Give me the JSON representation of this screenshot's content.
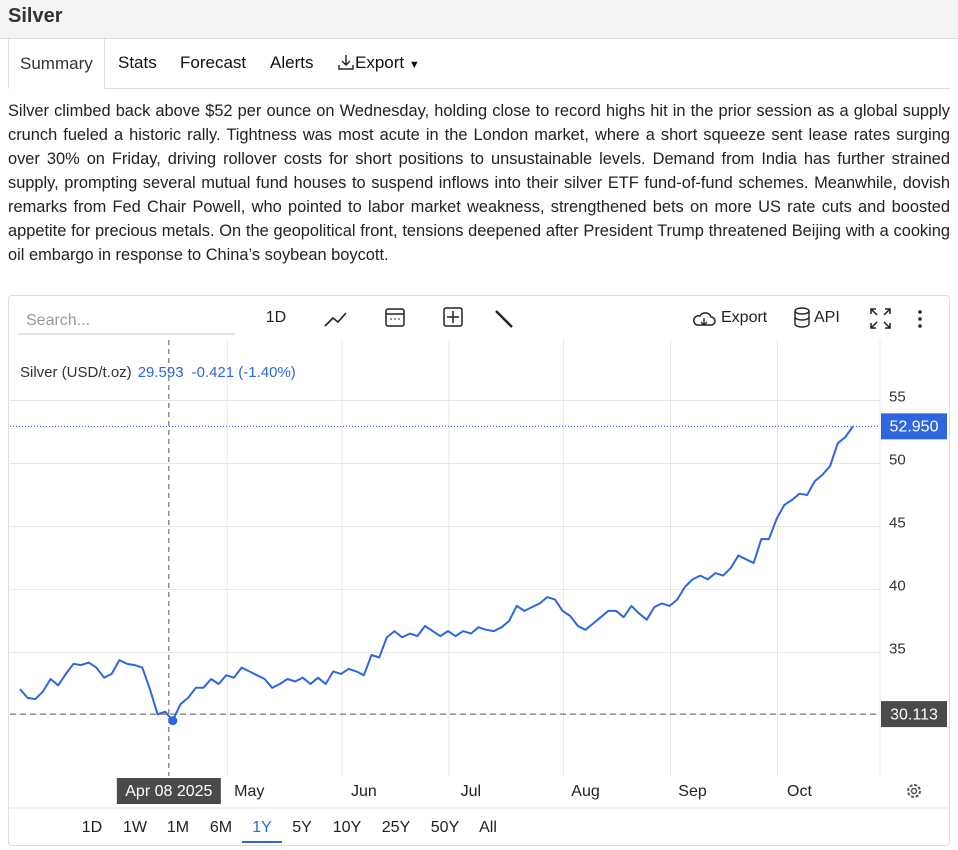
{
  "header": {
    "title": "Silver"
  },
  "tabs": [
    "Summary",
    "Stats",
    "Forecast",
    "Alerts",
    "Export"
  ],
  "article": "Silver climbed back above $52 per ounce on Wednesday, holding close to record highs hit in the prior session as a global supply crunch fueled a historic rally. Tightness was most acute in the London market, where a short squeeze sent lease rates surging over 30% on Friday, driving rollover costs for short positions to unsustainable levels. Demand from India has further strained supply, prompting several mutual fund houses to suspend inflows into their silver ETF fund-of-fund schemes. Meanwhile, dovish remarks from Fed Chair Powell, who pointed to labor market weakness, strengthened bets on more US rate cuts and boosted appetite for precious metals. On the geopolitical front, tensions deepened after President Trump threatened Beijing with a cooking oil embargo in response to China’s soybean boycott.",
  "toolbar": {
    "search_placeholder": "Search...",
    "interval": "1D",
    "export": "Export",
    "api": "API"
  },
  "ranges": [
    "1D",
    "1W",
    "1M",
    "6M",
    "1Y",
    "5Y",
    "10Y",
    "25Y",
    "50Y",
    "All"
  ],
  "active_range": "1Y",
  "chart_data": {
    "type": "line",
    "series": [
      {
        "name": "Silver (USD/t.oz)",
        "color": "#2f66e0",
        "values": [
          32.1,
          31.4,
          31.3,
          31.9,
          32.9,
          32.4,
          33.3,
          34.1,
          34.0,
          34.2,
          33.8,
          33.0,
          33.3,
          34.4,
          34.1,
          34.0,
          33.8,
          32.1,
          30.1,
          30.3,
          29.593,
          30.9,
          31.4,
          32.2,
          32.2,
          32.9,
          32.5,
          33.2,
          33.0,
          33.8,
          33.5,
          33.2,
          32.9,
          32.2,
          32.5,
          32.9,
          32.7,
          33.0,
          32.5,
          33.0,
          32.5,
          33.5,
          33.3,
          33.7,
          33.5,
          33.2,
          34.8,
          34.6,
          36.2,
          36.7,
          36.2,
          36.5,
          36.3,
          37.1,
          36.7,
          36.3,
          36.7,
          36.3,
          36.7,
          36.5,
          37.0,
          36.8,
          36.7,
          37.0,
          37.5,
          38.7,
          38.3,
          38.6,
          38.9,
          39.4,
          39.2,
          38.3,
          37.9,
          37.1,
          36.8,
          37.3,
          37.8,
          38.3,
          38.3,
          37.8,
          38.7,
          38.1,
          37.6,
          38.6,
          38.9,
          38.7,
          39.2,
          40.2,
          40.8,
          41.1,
          40.8,
          41.3,
          41.1,
          41.7,
          42.7,
          42.4,
          42.1,
          44.0,
          44.0,
          45.6,
          46.7,
          47.1,
          47.6,
          47.5,
          48.6,
          49.1,
          49.8,
          51.6,
          52.1,
          52.95
        ]
      }
    ],
    "legend_value": "29.593",
    "legend_change": "-0.421 (-1.40%)",
    "xticks": [
      {
        "value": 30,
        "label": "May"
      },
      {
        "value": 45,
        "label": "Jun"
      },
      {
        "value": 59,
        "label": "Jul"
      },
      {
        "value": 74,
        "label": "Aug"
      },
      {
        "value": 88,
        "label": "Sep"
      },
      {
        "value": 102,
        "label": "Oct"
      }
    ],
    "ylim": [
      25.2,
      59.8
    ],
    "yticks": [
      35,
      40,
      45,
      50,
      55
    ],
    "grid": true,
    "last_price": {
      "value": 52.95,
      "label": "52.950"
    },
    "crosshair": {
      "label": "Apr 08 2025",
      "value": 30.113
    }
  }
}
